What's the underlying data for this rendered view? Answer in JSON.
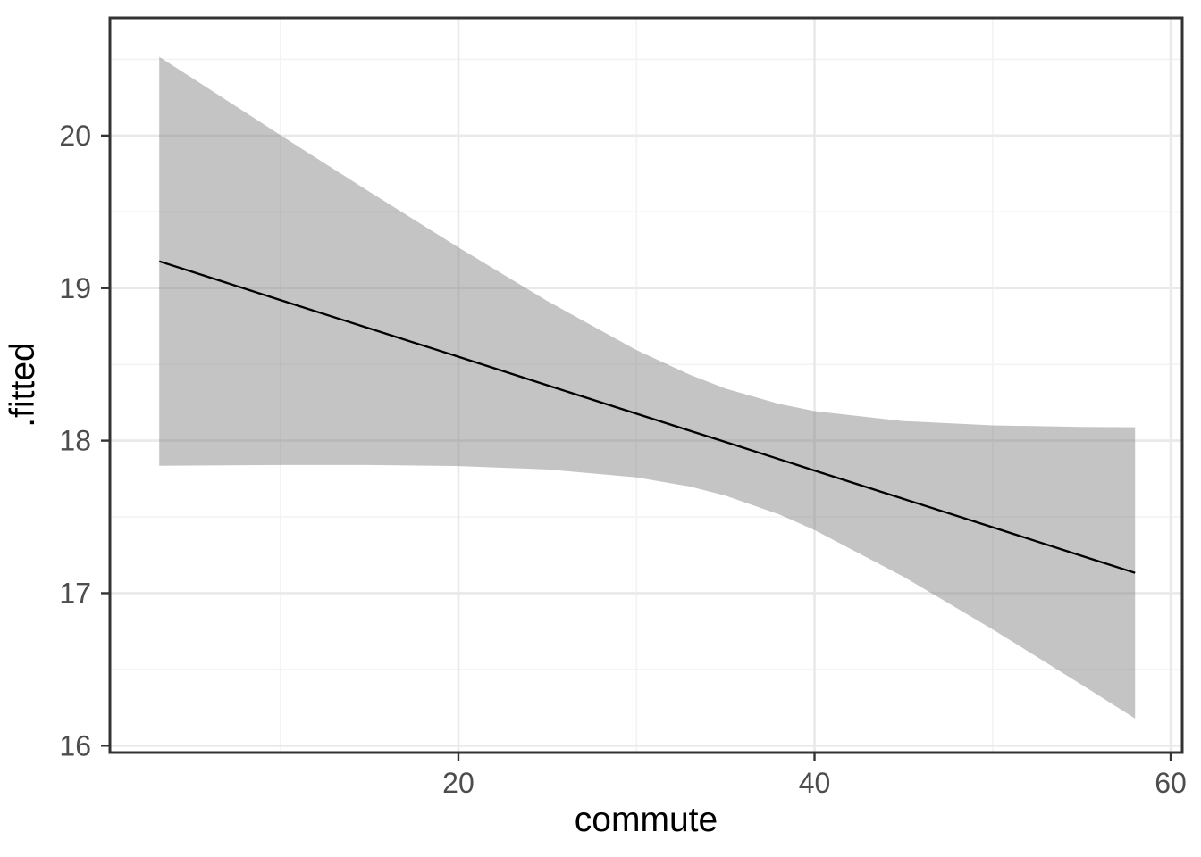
{
  "chart_data": {
    "type": "line",
    "title": "",
    "xlabel": "commute",
    "ylabel": ".fitted",
    "xlim": [
      0.43,
      60.65
    ],
    "ylim": [
      15.955,
      20.772
    ],
    "grid": "major and minor, light gray on white panel",
    "legend": "none",
    "x_ticks": {
      "major": [
        20,
        40,
        60
      ],
      "minor": [
        10,
        30,
        50
      ]
    },
    "y_ticks": {
      "major": [
        16,
        17,
        18,
        19,
        20
      ],
      "minor": [
        16.5,
        17.5,
        18.5,
        19.5,
        20.5
      ]
    },
    "x": [
      3.2,
      5,
      10,
      15,
      20,
      25,
      30,
      33,
      35,
      38,
      40,
      45,
      50,
      55,
      58
    ],
    "series": [
      {
        "name": "fitted-regression-line",
        "values": [
          19.176,
          19.109,
          18.922,
          18.736,
          18.55,
          18.363,
          18.177,
          18.065,
          17.991,
          17.879,
          17.804,
          17.618,
          17.432,
          17.245,
          17.133
        ]
      },
      {
        "name": "confidence-ribbon-upper",
        "values": [
          20.517,
          20.381,
          20.004,
          19.632,
          19.267,
          18.915,
          18.594,
          18.432,
          18.342,
          18.241,
          18.194,
          18.128,
          18.1,
          18.09,
          18.088
        ]
      },
      {
        "name": "confidence-ribbon-lower",
        "values": [
          17.835,
          17.837,
          17.84,
          17.84,
          17.833,
          17.811,
          17.759,
          17.699,
          17.639,
          17.517,
          17.414,
          17.108,
          16.763,
          16.4,
          16.178
        ]
      }
    ],
    "colors": {
      "background": "#FFFFFF",
      "panel_background": "#FFFFFF",
      "panel_border": "#333333",
      "grid_major": "#E9E9E9",
      "grid_minor": "#F3F3F3",
      "ribbon_fill": "rgba(125,125,125,0.45)",
      "line": "#000000",
      "tick_mark": "#333333",
      "tick_label": "#4D4D4D",
      "axis_title": "#000000"
    }
  }
}
